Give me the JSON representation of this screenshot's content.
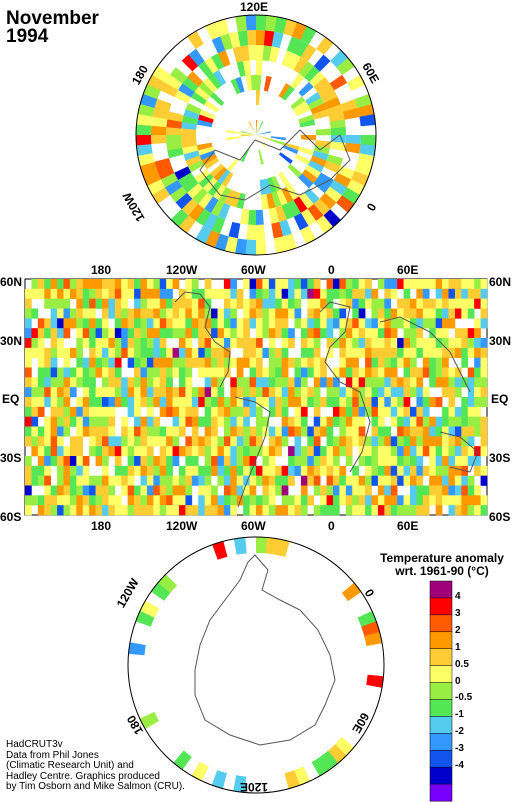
{
  "title": {
    "month": "November",
    "year": "1994"
  },
  "north_map": {
    "labels": {
      "top": "120E",
      "left": "180",
      "right": "60E",
      "bottom_left": "120W",
      "bottom_right": "0"
    }
  },
  "equatorial_map": {
    "lon_labels": [
      "180",
      "120W",
      "60W",
      "0",
      "60E"
    ],
    "lat_labels": [
      "60N",
      "30N",
      "EQ",
      "30S",
      "60S"
    ]
  },
  "south_map": {
    "labels": {
      "top_left": "120W",
      "top_right": "0",
      "bottom_left": "180",
      "bottom_right": "60E",
      "bottom": "120E"
    }
  },
  "legend": {
    "title_line1": "Temperature anomaly",
    "title_line2": "wrt. 1961-90  (°C)",
    "ticks": [
      "4",
      "3",
      "2",
      "1",
      "0.5",
      "0",
      "-0.5",
      "-1",
      "-2",
      "-3",
      "-4"
    ],
    "colors": [
      "#a0007a",
      "#ff0000",
      "#ff5a00",
      "#ff9900",
      "#ffcc33",
      "#ffff66",
      "#99ee44",
      "#55e655",
      "#55ccee",
      "#3399ff",
      "#1155ee",
      "#0000cc",
      "#7700ff"
    ]
  },
  "credits": {
    "line1": "HadCRUT3v",
    "line2": "Data from Phil Jones",
    "line3": "(Climatic Research Unit) and",
    "line4": "Hadley Centre.  Graphics produced",
    "line5": "by Tim Osborn and Mike Salmon (CRU)."
  }
}
